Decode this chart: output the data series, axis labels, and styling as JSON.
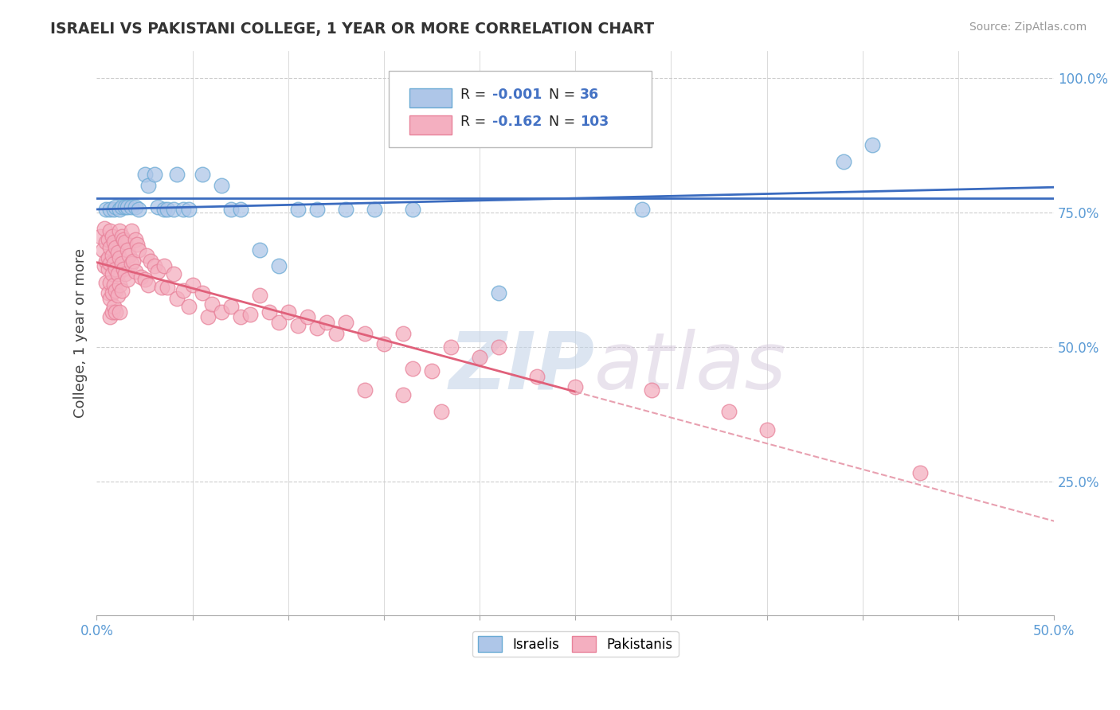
{
  "title": "ISRAELI VS PAKISTANI COLLEGE, 1 YEAR OR MORE CORRELATION CHART",
  "source": "Source: ZipAtlas.com",
  "ylabel": "College, 1 year or more",
  "xlim": [
    0.0,
    0.5
  ],
  "ylim": [
    0.0,
    1.05
  ],
  "watermark_zip": "ZIP",
  "watermark_atlas": "atlas",
  "legend_r_israeli": "-0.001",
  "legend_n_israeli": "36",
  "legend_r_pakistani": "-0.162",
  "legend_n_pakistani": "103",
  "israeli_color": "#aec6e8",
  "pakistani_color": "#f4afc0",
  "israeli_edge": "#6aaad4",
  "pakistani_edge": "#e8829a",
  "trend_israeli_color": "#3a6bbf",
  "trend_pakistani_solid_color": "#e0607a",
  "trend_pakistani_dash_color": "#e8a0b0",
  "grid_color": "#cccccc",
  "background_color": "#ffffff",
  "israeli_points": [
    [
      0.005,
      0.755
    ],
    [
      0.007,
      0.755
    ],
    [
      0.009,
      0.755
    ],
    [
      0.01,
      0.76
    ],
    [
      0.012,
      0.755
    ],
    [
      0.013,
      0.76
    ],
    [
      0.015,
      0.76
    ],
    [
      0.016,
      0.76
    ],
    [
      0.018,
      0.76
    ],
    [
      0.02,
      0.76
    ],
    [
      0.022,
      0.755
    ],
    [
      0.025,
      0.82
    ],
    [
      0.027,
      0.8
    ],
    [
      0.03,
      0.82
    ],
    [
      0.032,
      0.76
    ],
    [
      0.035,
      0.755
    ],
    [
      0.037,
      0.755
    ],
    [
      0.04,
      0.755
    ],
    [
      0.042,
      0.82
    ],
    [
      0.045,
      0.755
    ],
    [
      0.048,
      0.755
    ],
    [
      0.055,
      0.82
    ],
    [
      0.065,
      0.8
    ],
    [
      0.07,
      0.755
    ],
    [
      0.075,
      0.755
    ],
    [
      0.085,
      0.68
    ],
    [
      0.095,
      0.65
    ],
    [
      0.105,
      0.755
    ],
    [
      0.115,
      0.755
    ],
    [
      0.13,
      0.755
    ],
    [
      0.145,
      0.755
    ],
    [
      0.165,
      0.755
    ],
    [
      0.21,
      0.6
    ],
    [
      0.285,
      0.755
    ],
    [
      0.39,
      0.845
    ],
    [
      0.405,
      0.875
    ]
  ],
  "pakistani_points": [
    [
      0.002,
      0.705
    ],
    [
      0.003,
      0.68
    ],
    [
      0.004,
      0.72
    ],
    [
      0.004,
      0.65
    ],
    [
      0.005,
      0.695
    ],
    [
      0.005,
      0.66
    ],
    [
      0.005,
      0.62
    ],
    [
      0.006,
      0.7
    ],
    [
      0.006,
      0.665
    ],
    [
      0.006,
      0.645
    ],
    [
      0.006,
      0.6
    ],
    [
      0.007,
      0.715
    ],
    [
      0.007,
      0.685
    ],
    [
      0.007,
      0.655
    ],
    [
      0.007,
      0.62
    ],
    [
      0.007,
      0.59
    ],
    [
      0.007,
      0.555
    ],
    [
      0.008,
      0.705
    ],
    [
      0.008,
      0.67
    ],
    [
      0.008,
      0.635
    ],
    [
      0.008,
      0.6
    ],
    [
      0.008,
      0.565
    ],
    [
      0.009,
      0.695
    ],
    [
      0.009,
      0.655
    ],
    [
      0.009,
      0.615
    ],
    [
      0.009,
      0.575
    ],
    [
      0.01,
      0.685
    ],
    [
      0.01,
      0.645
    ],
    [
      0.01,
      0.605
    ],
    [
      0.01,
      0.565
    ],
    [
      0.011,
      0.675
    ],
    [
      0.011,
      0.635
    ],
    [
      0.011,
      0.595
    ],
    [
      0.012,
      0.715
    ],
    [
      0.012,
      0.665
    ],
    [
      0.012,
      0.615
    ],
    [
      0.012,
      0.565
    ],
    [
      0.013,
      0.705
    ],
    [
      0.013,
      0.655
    ],
    [
      0.013,
      0.605
    ],
    [
      0.014,
      0.7
    ],
    [
      0.014,
      0.645
    ],
    [
      0.015,
      0.695
    ],
    [
      0.015,
      0.635
    ],
    [
      0.016,
      0.68
    ],
    [
      0.016,
      0.625
    ],
    [
      0.017,
      0.67
    ],
    [
      0.018,
      0.715
    ],
    [
      0.018,
      0.655
    ],
    [
      0.019,
      0.66
    ],
    [
      0.02,
      0.7
    ],
    [
      0.02,
      0.64
    ],
    [
      0.021,
      0.69
    ],
    [
      0.022,
      0.68
    ],
    [
      0.023,
      0.63
    ],
    [
      0.025,
      0.625
    ],
    [
      0.026,
      0.67
    ],
    [
      0.027,
      0.615
    ],
    [
      0.028,
      0.66
    ],
    [
      0.03,
      0.65
    ],
    [
      0.032,
      0.64
    ],
    [
      0.034,
      0.61
    ],
    [
      0.035,
      0.65
    ],
    [
      0.037,
      0.61
    ],
    [
      0.04,
      0.635
    ],
    [
      0.042,
      0.59
    ],
    [
      0.045,
      0.605
    ],
    [
      0.048,
      0.575
    ],
    [
      0.05,
      0.615
    ],
    [
      0.055,
      0.6
    ],
    [
      0.058,
      0.555
    ],
    [
      0.06,
      0.58
    ],
    [
      0.065,
      0.565
    ],
    [
      0.07,
      0.575
    ],
    [
      0.075,
      0.555
    ],
    [
      0.08,
      0.56
    ],
    [
      0.085,
      0.595
    ],
    [
      0.09,
      0.565
    ],
    [
      0.095,
      0.545
    ],
    [
      0.1,
      0.565
    ],
    [
      0.105,
      0.54
    ],
    [
      0.11,
      0.555
    ],
    [
      0.115,
      0.535
    ],
    [
      0.12,
      0.545
    ],
    [
      0.125,
      0.525
    ],
    [
      0.13,
      0.545
    ],
    [
      0.14,
      0.525
    ],
    [
      0.15,
      0.505
    ],
    [
      0.16,
      0.525
    ],
    [
      0.165,
      0.46
    ],
    [
      0.175,
      0.455
    ],
    [
      0.185,
      0.5
    ],
    [
      0.2,
      0.48
    ],
    [
      0.21,
      0.5
    ],
    [
      0.23,
      0.445
    ],
    [
      0.25,
      0.425
    ],
    [
      0.29,
      0.42
    ],
    [
      0.33,
      0.38
    ],
    [
      0.35,
      0.345
    ],
    [
      0.43,
      0.265
    ],
    [
      0.14,
      0.42
    ],
    [
      0.16,
      0.41
    ],
    [
      0.18,
      0.38
    ]
  ]
}
